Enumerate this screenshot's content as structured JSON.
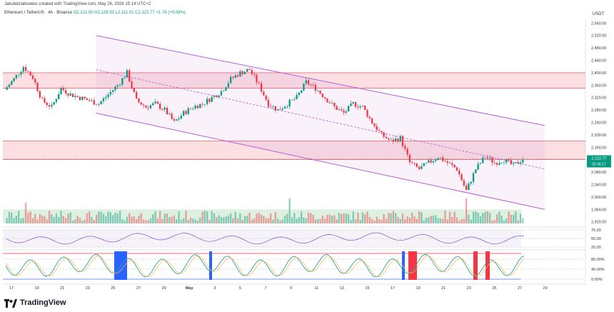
{
  "header": {
    "byline": "Jakubdzialkowiec created with TradingView.com, May 26, 2026 15:14 UTC+2"
  },
  "legend": {
    "symbol": "Ethereum / TetherUS · 4h · Binance",
    "values": "O2,121.00 H2,126.93 L2,111.01 C2,122.77 +1.76 (+0.08%)"
  },
  "currency": "USDT",
  "brand": "TradingView",
  "last_price_label": "2,122.77",
  "countdown_label": "02:45:17",
  "rsi_axis": [
    "75.00",
    "50.00",
    "25.00"
  ],
  "stoch_axis": [
    "80.00%",
    "40.00%",
    "0.00%"
  ],
  "colors": {
    "up": "#089981",
    "down": "#f23645",
    "channel": "#b55fd1",
    "zone": "#f6b8c0",
    "volume_zone": "#c8e6c9",
    "rsi": "#7e57c2",
    "stoch_blue": "#2962ff"
  },
  "chart_data": {
    "type": "candlestick",
    "title": "",
    "y_ticks": [
      2560,
      2520,
      2480,
      2440,
      2400,
      2360,
      2320,
      2280,
      2240,
      2200,
      2160,
      2120,
      2080,
      2040,
      2000,
      1960,
      1920
    ],
    "ylim": [
      1910,
      2570
    ],
    "x_ticks": [
      "17",
      "19",
      "21",
      "23",
      "25",
      "27",
      "29",
      "May",
      "3",
      "5",
      "7",
      "9",
      "11",
      "13",
      "15",
      "17",
      "19",
      "21",
      "23",
      "25",
      "27",
      "29"
    ],
    "price_path": [
      [
        0,
        2345
      ],
      [
        4,
        2380
      ],
      [
        8,
        2420
      ],
      [
        12,
        2385
      ],
      [
        16,
        2310
      ],
      [
        20,
        2290
      ],
      [
        24,
        2350
      ],
      [
        28,
        2330
      ],
      [
        32,
        2320
      ],
      [
        36,
        2310
      ],
      [
        40,
        2300
      ],
      [
        44,
        2330
      ],
      [
        48,
        2360
      ],
      [
        52,
        2400
      ],
      [
        56,
        2310
      ],
      [
        60,
        2290
      ],
      [
        64,
        2300
      ],
      [
        68,
        2280
      ],
      [
        72,
        2240
      ],
      [
        76,
        2270
      ],
      [
        80,
        2290
      ],
      [
        84,
        2300
      ],
      [
        88,
        2320
      ],
      [
        92,
        2340
      ],
      [
        96,
        2380
      ],
      [
        100,
        2400
      ],
      [
        104,
        2410
      ],
      [
        108,
        2360
      ],
      [
        112,
        2300
      ],
      [
        116,
        2280
      ],
      [
        120,
        2300
      ],
      [
        124,
        2320
      ],
      [
        128,
        2370
      ],
      [
        132,
        2350
      ],
      [
        136,
        2320
      ],
      [
        140,
        2290
      ],
      [
        144,
        2270
      ],
      [
        148,
        2300
      ],
      [
        152,
        2290
      ],
      [
        156,
        2240
      ],
      [
        160,
        2200
      ],
      [
        164,
        2180
      ],
      [
        168,
        2190
      ],
      [
        172,
        2110
      ],
      [
        176,
        2090
      ],
      [
        180,
        2110
      ],
      [
        184,
        2130
      ],
      [
        188,
        2110
      ],
      [
        192,
        2090
      ],
      [
        196,
        2020
      ],
      [
        200,
        2090
      ],
      [
        204,
        2130
      ],
      [
        208,
        2110
      ],
      [
        212,
        2120
      ],
      [
        216,
        2100
      ],
      [
        220,
        2123
      ]
    ],
    "channel": {
      "upper": [
        [
          2520,
          0.18
        ],
        [
          2230,
          1.0
        ]
      ],
      "lower": [
        [
          2270,
          0.18
        ],
        [
          1960,
          1.0
        ]
      ],
      "mid": [
        [
          2410,
          0.18
        ],
        [
          2090,
          1.0
        ]
      ]
    },
    "zones": [
      [
        2350,
        2400
      ],
      [
        2120,
        2180
      ]
    ],
    "volume_zone": [
      1915,
      1960
    ],
    "indicators": {
      "rsi": {
        "levels": [
          75,
          50,
          25
        ]
      },
      "stoch": {
        "levels": [
          80,
          40,
          0
        ]
      }
    }
  }
}
